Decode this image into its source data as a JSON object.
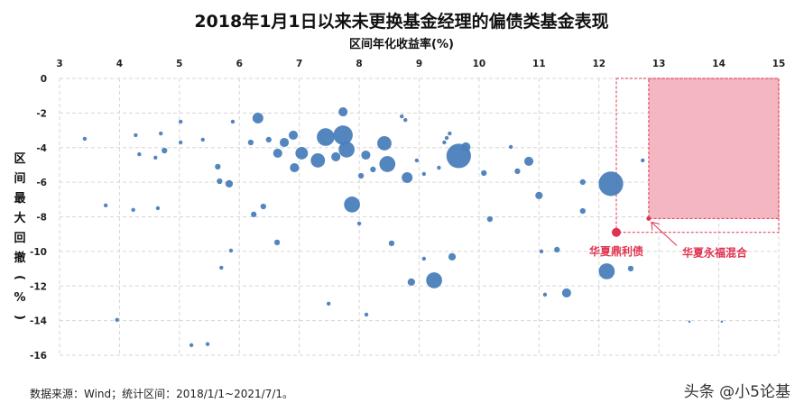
{
  "chart_data": {
    "type": "scatter",
    "title": "2018年1月1日以来未更换基金经理的偏债类基金表现",
    "xlabel": "区间年化收益率(%)",
    "ylabel": "区间最大回撤(%)",
    "xlim": [
      3,
      15
    ],
    "ylim": [
      -16,
      0
    ],
    "xticks": [
      3,
      4,
      5,
      6,
      7,
      8,
      9,
      10,
      11,
      12,
      13,
      14,
      15
    ],
    "yticks": [
      0,
      -2,
      -4,
      -6,
      -8,
      -10,
      -12,
      -14,
      -16
    ],
    "x_axis_position": "top",
    "grid": true,
    "bubble": true,
    "series_color": "#4a7ebb",
    "highlight_color": "#e0334f",
    "highlight_region": {
      "x": [
        12.83,
        15
      ],
      "y": [
        -8.1,
        0
      ],
      "fill": "#f4b6c0"
    },
    "points": [
      [
        12.2,
        -6.09,
        14
      ],
      [
        9.66,
        -4.48,
        14
      ],
      [
        7.73,
        -3.28,
        11
      ],
      [
        7.44,
        -3.39,
        10
      ],
      [
        7.79,
        -4.11,
        9
      ],
      [
        7.88,
        -7.29,
        9
      ],
      [
        8.47,
        -4.95,
        9
      ],
      [
        8.42,
        -3.75,
        8
      ],
      [
        7.31,
        -4.74,
        8
      ],
      [
        9.25,
        -11.67,
        9
      ],
      [
        12.13,
        -11.15,
        9
      ],
      [
        7.04,
        -4.32,
        7
      ],
      [
        8.8,
        -5.73,
        6
      ],
      [
        6.31,
        -2.29,
        6
      ],
      [
        6.75,
        -3.7,
        5
      ],
      [
        6.92,
        -5.16,
        5
      ],
      [
        9.78,
        -3.96,
        5
      ],
      [
        11.46,
        -12.4,
        5
      ],
      [
        10.83,
        -4.79,
        5
      ],
      [
        8.11,
        -4.43,
        5
      ],
      [
        6.9,
        -3.28,
        5
      ],
      [
        7.73,
        -1.93,
        5
      ],
      [
        7.61,
        -4.53,
        5
      ],
      [
        6.64,
        -4.32,
        5
      ],
      [
        8.87,
        -11.77,
        4
      ],
      [
        11.0,
        -6.77,
        4
      ],
      [
        9.55,
        -10.31,
        4
      ],
      [
        5.83,
        -6.09,
        4
      ],
      [
        5.67,
        -5.94,
        3
      ],
      [
        11.3,
        -9.9,
        3
      ],
      [
        11.73,
        -7.66,
        3
      ],
      [
        11.73,
        -5.99,
        3
      ],
      [
        10.64,
        -5.36,
        3
      ],
      [
        10.08,
        -5.47,
        3
      ],
      [
        8.54,
        -9.53,
        3
      ],
      [
        6.63,
        -9.48,
        3
      ],
      [
        6.4,
        -7.4,
        3
      ],
      [
        6.24,
        -7.86,
        3
      ],
      [
        4.75,
        -4.17,
        3
      ],
      [
        4.6,
        -4.58,
        2
      ],
      [
        4.33,
        -4.38,
        2
      ],
      [
        3.77,
        -7.34,
        2
      ],
      [
        3.96,
        -13.96,
        2
      ],
      [
        4.23,
        -7.6,
        2
      ],
      [
        4.64,
        -7.5,
        2
      ],
      [
        5.2,
        -15.42,
        2
      ],
      [
        5.47,
        -15.36,
        2
      ],
      [
        11.04,
        -10.0,
        2
      ],
      [
        11.1,
        -12.5,
        2
      ],
      [
        10.53,
        -3.96,
        2
      ],
      [
        12.73,
        -4.74,
        2
      ],
      [
        12.53,
        -10.99,
        3
      ],
      [
        10.18,
        -8.13,
        3
      ],
      [
        8.71,
        -2.19,
        2
      ],
      [
        8.77,
        -2.4,
        2
      ],
      [
        9.46,
        -3.44,
        2
      ],
      [
        9.42,
        -3.7,
        2
      ],
      [
        9.51,
        -3.18,
        2
      ],
      [
        8.12,
        -13.65,
        2
      ],
      [
        7.49,
        -13.02,
        2
      ],
      [
        9.08,
        -10.42,
        2
      ],
      [
        8.96,
        -4.74,
        2
      ],
      [
        9.33,
        -5.16,
        2
      ],
      [
        8.0,
        -8.39,
        2
      ],
      [
        13.51,
        -14.06,
        1
      ],
      [
        14.05,
        -14.06,
        1
      ],
      [
        5.86,
        -9.95,
        2
      ],
      [
        5.7,
        -10.94,
        2
      ],
      [
        5.02,
        -2.5,
        2
      ],
      [
        5.39,
        -3.54,
        2
      ],
      [
        5.89,
        -2.5,
        2
      ],
      [
        6.19,
        -3.7,
        3
      ],
      [
        6.49,
        -3.54,
        3
      ],
      [
        5.02,
        -3.7,
        2
      ],
      [
        5.64,
        -5.1,
        3
      ],
      [
        3.42,
        -3.49,
        2
      ],
      [
        4.27,
        -3.28,
        2
      ],
      [
        4.69,
        -3.18,
        2
      ],
      [
        8.03,
        -5.63,
        3
      ],
      [
        8.23,
        -5.26,
        3
      ],
      [
        9.08,
        -5.52,
        2
      ]
    ],
    "highlights": [
      {
        "name": "华夏鼎利债",
        "x": 12.29,
        "y": -8.9
      },
      {
        "name": "华夏永福混合",
        "x": 12.83,
        "y": -8.1
      }
    ]
  },
  "footer": "数据来源：Wind；统计区间：2018/1/1~2021/7/1。",
  "watermark": "头条 @小5论基"
}
